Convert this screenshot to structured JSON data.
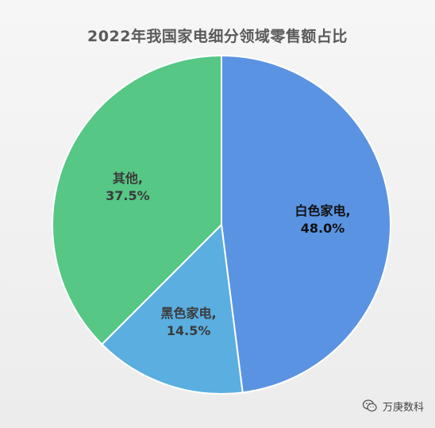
{
  "chart_data": {
    "type": "pie",
    "title": "2022年我国家电细分领域零售额占比",
    "slices": [
      {
        "label": "白色家电",
        "value": 48.0,
        "display": "48.0%",
        "color": "#5b93e3",
        "text_color": "#111111"
      },
      {
        "label": "黑色家电",
        "value": 14.5,
        "display": "14.5%",
        "color": "#5aaee0",
        "text_color": "#3a3a3a"
      },
      {
        "label": "其他",
        "value": 37.5,
        "display": "37.5%",
        "color": "#56c785",
        "text_color": "#3a3a3a"
      }
    ],
    "start": "top",
    "direction": "clockwise",
    "legend": "none"
  },
  "watermark": {
    "text": "万庚数科",
    "icon": "wechat-icon"
  }
}
